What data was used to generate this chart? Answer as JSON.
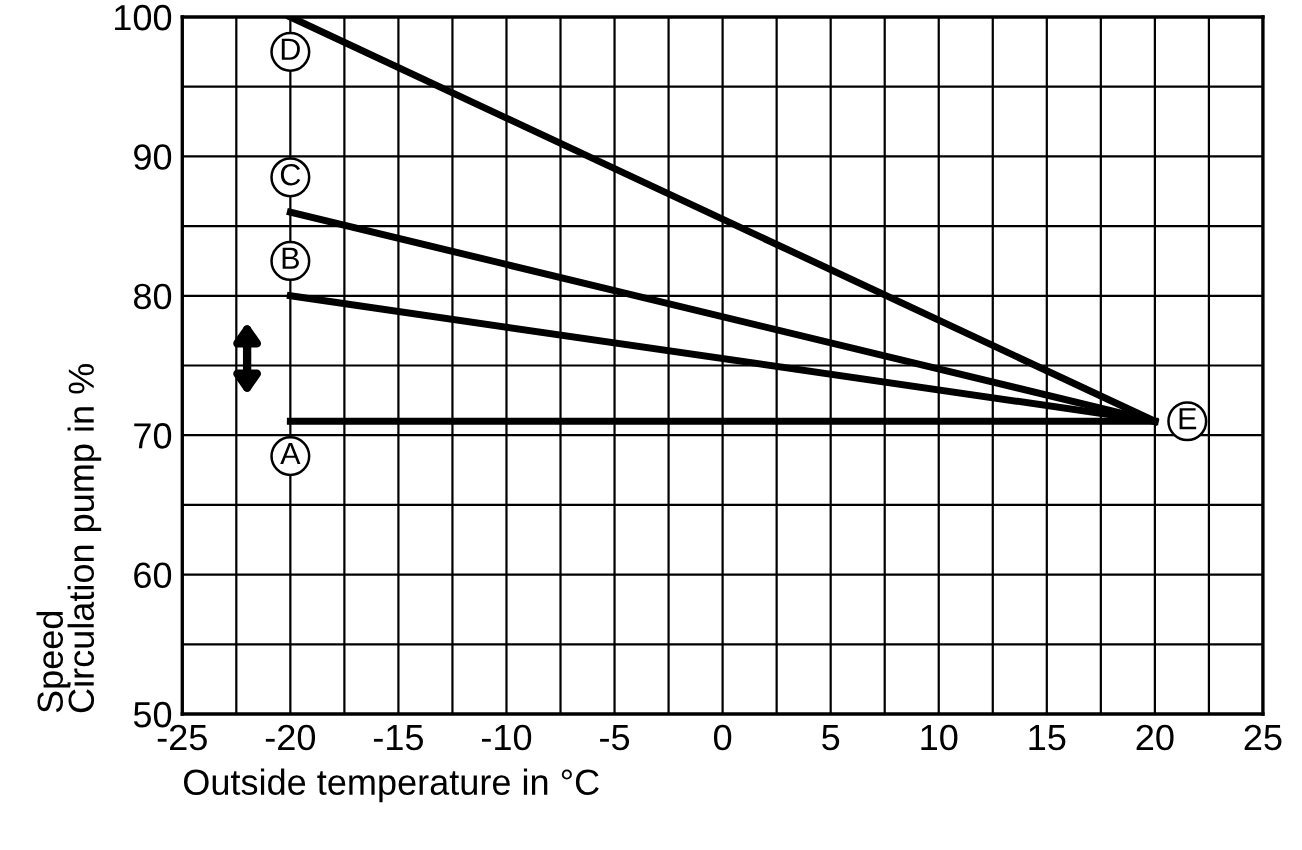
{
  "chart_data": {
    "type": "line",
    "xlabel": "Outside temperature in °C",
    "ylabel": "Speed\nCirculation pump in %",
    "x": [
      -20,
      20
    ],
    "series": [
      {
        "color": "#000000",
        "values": [
          71,
          71
        ]
      },
      {
        "color": "#000000",
        "values": [
          80,
          71
        ]
      },
      {
        "color": "#000000",
        "values": [
          86,
          71
        ]
      },
      {
        "color": "#000000",
        "values": [
          100,
          71
        ]
      }
    ],
    "xlim": [
      -25,
      25
    ],
    "ylim": [
      50,
      100
    ],
    "xticks": [
      -25,
      {
        "value": -22.5,
        "label": null
      },
      -20,
      {
        "value": -17.5,
        "label": null
      },
      -15,
      {
        "value": -12.5,
        "label": null
      },
      -10,
      {
        "value": -7.5,
        "label": null
      },
      -5,
      {
        "value": -2.5,
        "label": null
      },
      0,
      {
        "value": 2.5,
        "label": null
      },
      5,
      {
        "value": 7.5,
        "label": null
      },
      10,
      {
        "value": 12.5,
        "label": null
      },
      15,
      {
        "value": 17.5,
        "label": null
      },
      20,
      {
        "value": 22.5,
        "label": null
      },
      25
    ],
    "yticks": [
      50,
      {
        "value": 55,
        "label": null
      },
      60,
      {
        "value": 65,
        "label": null
      },
      70,
      {
        "value": 75,
        "label": null
      },
      80,
      {
        "value": 85,
        "label": null
      },
      90,
      {
        "value": 95,
        "label": null
      },
      100
    ],
    "grid": true,
    "marker": "none",
    "line_style": "solid",
    "annotations": [
      "A",
      "B",
      "C",
      "D",
      "E"
    ]
  }
}
